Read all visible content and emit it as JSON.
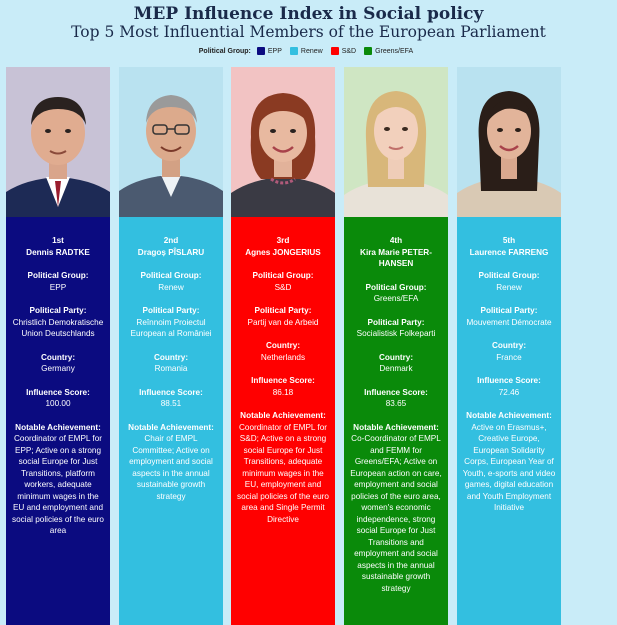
{
  "title": "MEP Influence Index in Social policy",
  "subtitle": "Top 5 Most Influential Members of the European Parliament",
  "legend": {
    "title": "Political Group:",
    "items": [
      {
        "label": "EPP",
        "color": "#0b0b80"
      },
      {
        "label": "Renew",
        "color": "#33bfe0"
      },
      {
        "label": "S&D",
        "color": "#ff0000"
      },
      {
        "label": "Greens/EFA",
        "color": "#0a8a0a"
      }
    ]
  },
  "labels": {
    "group": "Political Group:",
    "party": "Political Party:",
    "country": "Country:",
    "score": "Influence Score:",
    "achievement": "Notable Achievement:"
  },
  "meps": [
    {
      "rank": "1st",
      "name": "Dennis RADTKE",
      "group": "EPP",
      "party": "Christlich Demokratische Union Deutschlands",
      "country": "Germany",
      "score": "100.00",
      "achievement": "Coordinator of EMPL for EPP; Active on a strong social Europe for Just Transitions, platform workers, adequate minimum wages in the EU and employment and social policies of the euro area",
      "color": "#0b0b80",
      "photo_bg": "#c8c2d6"
    },
    {
      "rank": "2nd",
      "name": "Dragoș PÎSLARU",
      "group": "Renew",
      "party": "Reînnoim Proiectul European al României",
      "country": "Romania",
      "score": "88.51",
      "achievement": "Chair of EMPL Committee; Active on employment and social aspects in the annual sustainable growth strategy",
      "color": "#33bfe0",
      "photo_bg": "#b9e2f0"
    },
    {
      "rank": "3rd",
      "name": "Agnes JONGERIUS",
      "group": "S&D",
      "party": "Partij van de Arbeid",
      "country": "Netherlands",
      "score": "86.18",
      "achievement": "Coordinator of EMPL for S&D; Active on a strong social Europe for Just Transitions, adequate minimum wages in the EU, employment and social policies of the euro area and Single Permit Directive",
      "color": "#ff0000",
      "photo_bg": "#f2c3c3"
    },
    {
      "rank": "4th",
      "name": "Kira Marie PETER-HANSEN",
      "group": "Greens/EFA",
      "party": "Socialistisk Folkeparti",
      "country": "Denmark",
      "score": "83.65",
      "achievement": "Co-Coordinator of EMPL and FEMM for Greens/EFA; Active on European action on care, employment and social policies of the euro area, women's economic independence, strong social Europe for Just Transitions and employment and social aspects in the annual sustainable growth strategy",
      "color": "#0a8a0a",
      "photo_bg": "#cfe6c3"
    },
    {
      "rank": "5th",
      "name": "Laurence FARRENG",
      "group": "Renew",
      "party": "Mouvement Démocrate",
      "country": "France",
      "score": "72.46",
      "achievement": "Active on Erasmus+, Creative Europe, European Solidarity Corps, European Year of Youth, e-sports and video games, digital education and Youth Employment Initiative",
      "color": "#33bfe0",
      "photo_bg": "#b9e2f0"
    }
  ]
}
